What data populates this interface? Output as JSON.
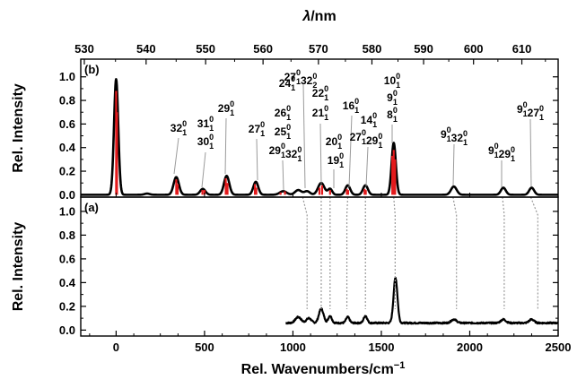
{
  "chart_data": {
    "type": "line",
    "top_axis": {
      "label_symbol": "λ",
      "label_unit": "/nm",
      "ticks": [
        530,
        540,
        550,
        560,
        570,
        580,
        590,
        600,
        610
      ],
      "origin_wavelength_nm": 535.1
    },
    "xlabel": "Rel. Wavenumbers/cm",
    "xlabel_superscript": "−1",
    "xlim": [
      -200,
      2500
    ],
    "xticks": [
      0,
      500,
      1000,
      1500,
      2000,
      2500
    ],
    "minor_xticks_every": 250,
    "panels": [
      {
        "id": "b",
        "label": "(b)",
        "ylabel": "Rel. Intensity",
        "ylim": [
          -0.02,
          1.15
        ],
        "yticks": [
          0.0,
          0.2,
          0.4,
          0.6,
          0.8,
          1.0
        ],
        "ytick_labels": [
          "0.0",
          "0.2",
          "0.4",
          "0.6",
          "0.8",
          "1.0"
        ],
        "series": [
          {
            "kind": "simulated_spectrum",
            "color": "#000000",
            "peaks": [
              [
                0,
                0.98,
                12
              ],
              [
                175,
                0.01,
                15
              ],
              [
                340,
                0.15,
                15
              ],
              [
                490,
                0.05,
                15
              ],
              [
                625,
                0.16,
                15
              ],
              [
                790,
                0.11,
                14
              ],
              [
                945,
                0.03,
                20
              ],
              [
                1030,
                0.04,
                18
              ],
              [
                1080,
                0.03,
                16
              ],
              [
                1160,
                0.1,
                18
              ],
              [
                1210,
                0.05,
                12
              ],
              [
                1310,
                0.08,
                14
              ],
              [
                1410,
                0.08,
                14
              ],
              [
                1570,
                0.44,
                12
              ],
              [
                1910,
                0.07,
                16
              ],
              [
                2190,
                0.06,
                14
              ],
              [
                2350,
                0.06,
                14
              ]
            ]
          },
          {
            "kind": "stick_spectrum",
            "color": "#e31a1c",
            "sticks": [
              [
                0,
                0.88
              ],
              [
                5,
                0.7
              ],
              [
                340,
                0.13
              ],
              [
                348,
                0.09
              ],
              [
                488,
                0.04
              ],
              [
                500,
                0.04
              ],
              [
                620,
                0.14
              ],
              [
                630,
                0.1
              ],
              [
                785,
                0.09
              ],
              [
                793,
                0.06
              ],
              [
                930,
                0.02
              ],
              [
                955,
                0.03
              ],
              [
                1150,
                0.06
              ],
              [
                1165,
                0.08
              ],
              [
                1210,
                0.04
              ],
              [
                1305,
                0.05
              ],
              [
                1312,
                0.04
              ],
              [
                1405,
                0.05
              ],
              [
                1412,
                0.04
              ],
              [
                1562,
                0.33
              ],
              [
                1570,
                0.38
              ],
              [
                1578,
                0.3
              ]
            ]
          }
        ],
        "annotations": [
          {
            "text": "32",
            "sup": "0",
            "sub": "1",
            "peak": 340
          },
          {
            "text": "31",
            "sup": "0",
            "sub": "1",
            "peak": 490
          },
          {
            "text": "30",
            "sup": "0",
            "sub": "1",
            "peak": 490
          },
          {
            "text": "29",
            "sup": "0",
            "sub": "1",
            "peak": 625
          },
          {
            "text": "27",
            "sup": "0",
            "sub": "1",
            "peak": 790
          },
          {
            "text": "26",
            "sup": "0",
            "sub": "1",
            "peak": 945
          },
          {
            "text": "25",
            "sup": "0",
            "sub": "1",
            "peak": 945
          },
          {
            "text": "29",
            "sup": "0",
            "sub": "1",
            "peak": 945,
            "text2": "32",
            "sup2": "0",
            "sub2": "1"
          },
          {
            "text": "24",
            "sup": "0",
            "sub": "1",
            "peak": 1030
          },
          {
            "text": "27",
            "sup": "0",
            "sub": "1",
            "peak": 1160,
            "text2": "32",
            "sup2": "0",
            "sub2": "2"
          },
          {
            "text": "22",
            "sup": "0",
            "sub": "1",
            "peak": 1160
          },
          {
            "text": "21",
            "sup": "0",
            "sub": "1",
            "peak": 1160
          },
          {
            "text": "20",
            "sup": "0",
            "sub": "1",
            "peak": 1210
          },
          {
            "text": "19",
            "sup": "0",
            "sub": "1",
            "peak": 1210
          },
          {
            "text": "16",
            "sup": "0",
            "sub": "1",
            "peak": 1310
          },
          {
            "text": "14",
            "sup": "0",
            "sub": "1",
            "peak": 1410
          },
          {
            "text": "27",
            "sup": "0",
            "sub": "1",
            "peak": 1410,
            "text2": "29",
            "sup2": "0",
            "sub2": "1"
          },
          {
            "text": "10",
            "sup": "0",
            "sub": "1",
            "peak": 1570
          },
          {
            "text": "9",
            "sup": "0",
            "sub": "1",
            "peak": 1570
          },
          {
            "text": "8",
            "sup": "0",
            "sub": "1",
            "peak": 1570
          },
          {
            "text": "9",
            "sup": "0",
            "sub": "1",
            "peak": 1910,
            "text2": "32",
            "sup2": "0",
            "sub2": "1"
          },
          {
            "text": "9",
            "sup": "0",
            "sub": "1",
            "peak": 2190,
            "text2": "29",
            "sup2": "0",
            "sub2": "1"
          },
          {
            "text": "9",
            "sup": "0",
            "sub": "1",
            "peak": 2350,
            "text2": "27",
            "sup2": "0",
            "sub2": "1"
          }
        ]
      },
      {
        "id": "a",
        "label": "(a)",
        "ylabel": "Rel. Intensity",
        "ylim": [
          -0.05,
          1.12
        ],
        "yticks": [
          0.0,
          0.2,
          0.4,
          0.6,
          0.8,
          1.0
        ],
        "ytick_labels": [
          "0.0",
          "0.2",
          "0.4",
          "0.6",
          "0.8",
          "1.0"
        ],
        "series": [
          {
            "kind": "experimental_spectrum",
            "color": "#000000",
            "x_range": [
              960,
              2500
            ],
            "baseline": 0.06,
            "peaks": [
              [
                1030,
                0.05,
                16
              ],
              [
                1090,
                0.04,
                14
              ],
              [
                1160,
                0.12,
                13
              ],
              [
                1210,
                0.06,
                10
              ],
              [
                1310,
                0.05,
                10
              ],
              [
                1410,
                0.06,
                10
              ],
              [
                1580,
                0.38,
                11
              ],
              [
                1910,
                0.03,
                15
              ],
              [
                2190,
                0.03,
                14
              ],
              [
                2350,
                0.03,
                14
              ]
            ]
          }
        ]
      }
    ],
    "connector_lines": {
      "style": "dotted grey",
      "positions": [
        [
          1055,
          1080
        ],
        [
          1160,
          1160
        ],
        [
          1210,
          1210
        ],
        [
          1310,
          1305
        ],
        [
          1410,
          1410
        ],
        [
          1570,
          1578
        ],
        [
          1905,
          1925
        ],
        [
          2185,
          2195
        ],
        [
          2345,
          2385
        ]
      ]
    }
  }
}
